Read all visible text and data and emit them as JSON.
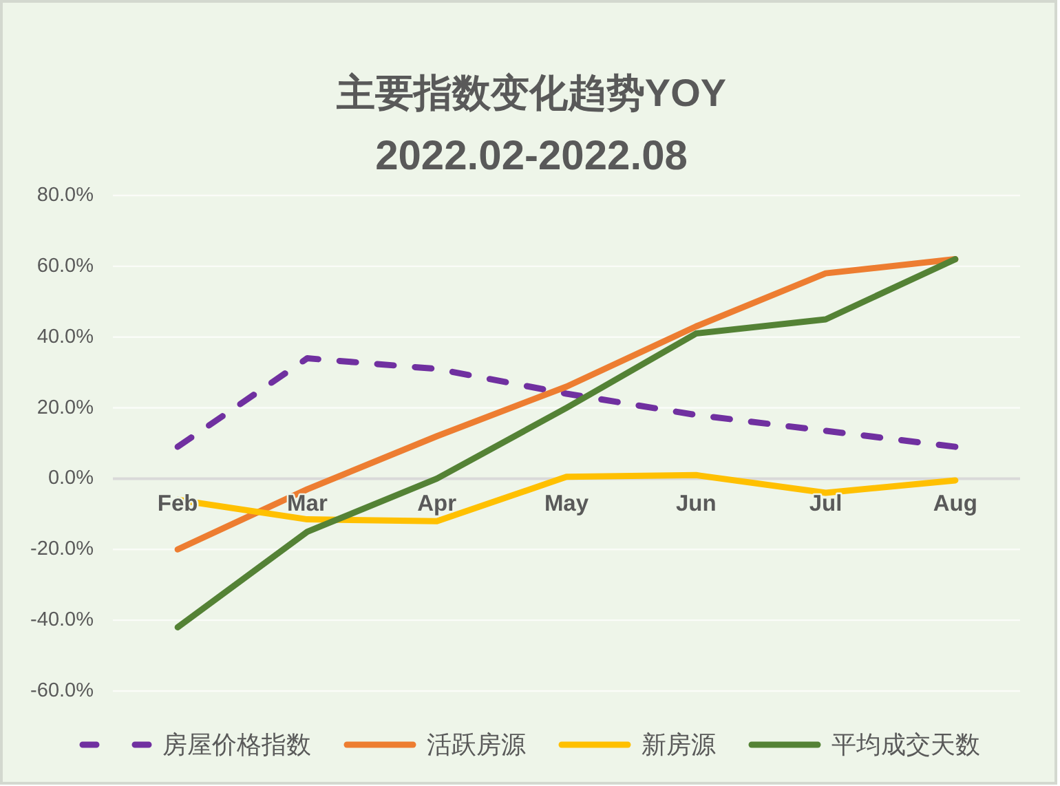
{
  "chart_data": {
    "type": "line",
    "title": "主要指数变化趋势YOY",
    "subtitle": "2022.02-2022.08",
    "categories": [
      "Feb",
      "Mar",
      "Apr",
      "May",
      "Jun",
      "Jul",
      "Aug"
    ],
    "series": [
      {
        "name": "房屋价格指数",
        "color": "#7030a0",
        "line_style": "dashed",
        "values": [
          9,
          34,
          31,
          24,
          18,
          13.5,
          9
        ]
      },
      {
        "name": "活跃房源",
        "color": "#ed7d31",
        "line_style": "solid",
        "values": [
          -20,
          -3,
          12,
          26,
          43,
          58,
          62
        ]
      },
      {
        "name": "新房源",
        "color": "#ffc000",
        "line_style": "solid",
        "values": [
          -6,
          -11.5,
          -12,
          0.5,
          1,
          -4,
          -0.5
        ]
      },
      {
        "name": "平均成交天数",
        "color": "#548235",
        "line_style": "solid",
        "values": [
          -42,
          -15,
          0,
          20,
          41,
          45,
          62
        ]
      }
    ],
    "ylim": [
      -60,
      80
    ],
    "yticks": [
      {
        "value": -60,
        "label": "-60.0%"
      },
      {
        "value": -40,
        "label": "-40.0%"
      },
      {
        "value": -20,
        "label": "-20.0%"
      },
      {
        "value": 0,
        "label": "0.0%"
      },
      {
        "value": 20,
        "label": "20.0%"
      },
      {
        "value": 40,
        "label": "40.0%"
      },
      {
        "value": 60,
        "label": "60.0%"
      },
      {
        "value": 80,
        "label": "80.0%"
      }
    ],
    "grid": "y",
    "legend": "bottom"
  }
}
